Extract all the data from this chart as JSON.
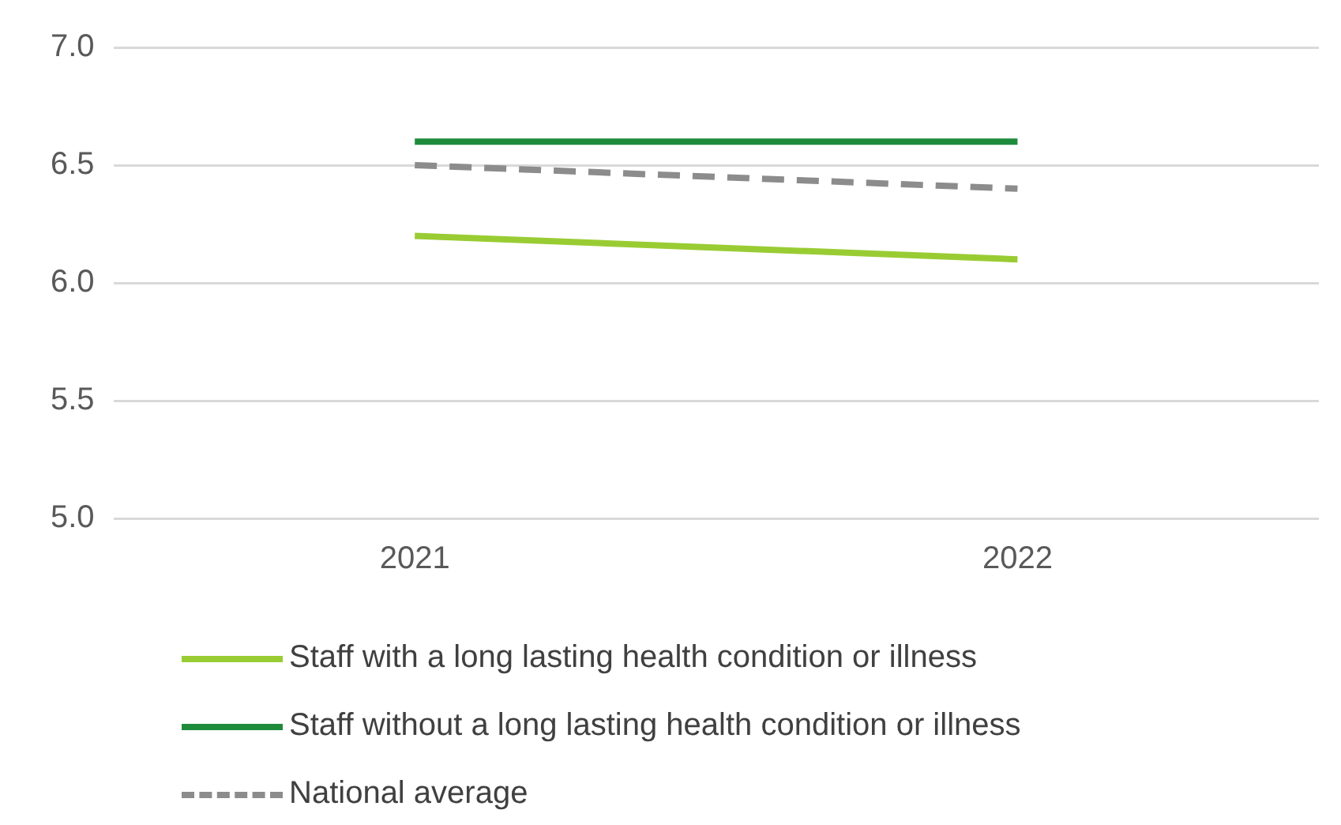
{
  "chart_data": {
    "type": "line",
    "categories": [
      "2021",
      "2022"
    ],
    "series": [
      {
        "name": "Staff with a long lasting health condition or illness",
        "color": "#99cc33",
        "values": [
          6.2,
          6.1
        ]
      },
      {
        "name": "Staff without a long lasting health condition or illness",
        "color": "#1e8b3c",
        "values": [
          6.6,
          6.6
        ]
      },
      {
        "name": "National average",
        "color": "#8c8c8c",
        "values": [
          6.5,
          6.4
        ],
        "line_style": "dashed"
      }
    ],
    "ylim": [
      5.0,
      7.0
    ],
    "yticks": [
      {
        "value": 5,
        "label": "5.0"
      },
      {
        "value": 5.5,
        "label": "5.5"
      },
      {
        "value": 6,
        "label": "6.0"
      },
      {
        "value": 6.5,
        "label": "6.5"
      },
      {
        "value": 7,
        "label": "7.0"
      }
    ],
    "grid": "y",
    "legend": "bottom",
    "marker": "none"
  }
}
